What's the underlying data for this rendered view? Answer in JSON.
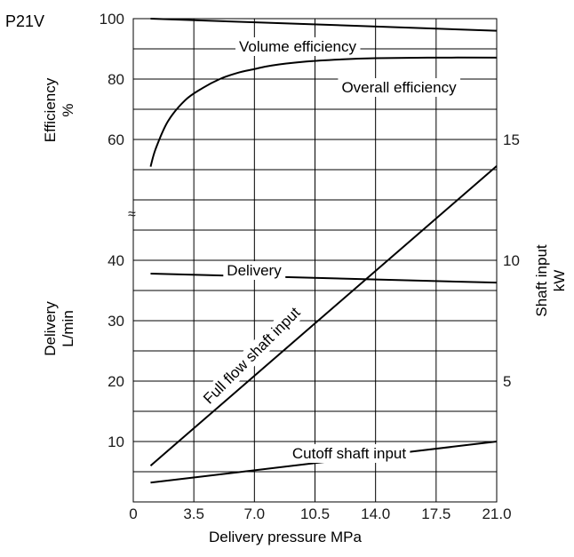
{
  "chart_data": {
    "type": "line",
    "title": "P21V",
    "xlabel": "Delivery pressure  MPa",
    "x_ticks": [
      "0",
      "3.5",
      "7.0",
      "10.5",
      "14.0",
      "17.5",
      "21.0"
    ],
    "xlim": [
      0,
      21
    ],
    "grid": true,
    "efficiency_axis": {
      "label_line1": "Efficiency",
      "label_line2": "%",
      "ticks": [
        "100",
        "80",
        "60"
      ]
    },
    "delivery_axis": {
      "label_line1": "Delivery",
      "label_line2": "L/min",
      "ticks": [
        "40",
        "30",
        "20",
        "10"
      ]
    },
    "shaft_axis": {
      "label_line1": "Shaft input",
      "label_line2": "kW",
      "ticks": [
        "15",
        "10",
        "5"
      ]
    },
    "break_symbol": "≈",
    "series": [
      {
        "name": "Volume efficiency",
        "axis": "efficiency",
        "x": [
          1,
          21
        ],
        "y": [
          100,
          96
        ]
      },
      {
        "name": "Overall efficiency",
        "axis": "efficiency",
        "x": [
          1,
          1.3,
          2,
          3,
          4,
          5,
          6,
          7,
          8,
          10,
          12,
          14,
          17,
          21
        ],
        "y": [
          51,
          57,
          66,
          73,
          77,
          80,
          82,
          83.3,
          84.5,
          85.8,
          86.5,
          86.9,
          87.1,
          87.1
        ]
      },
      {
        "name": "Delivery",
        "axis": "delivery",
        "x": [
          1,
          21
        ],
        "y": [
          37.8,
          36.3
        ]
      },
      {
        "name": "Full flow shaft input",
        "axis": "shaft",
        "x": [
          1,
          21
        ],
        "y": [
          1.5,
          13.9
        ]
      },
      {
        "name": "Cutoff shaft input",
        "axis": "shaft",
        "x": [
          1,
          21
        ],
        "y": [
          0.8,
          2.5
        ]
      }
    ]
  }
}
